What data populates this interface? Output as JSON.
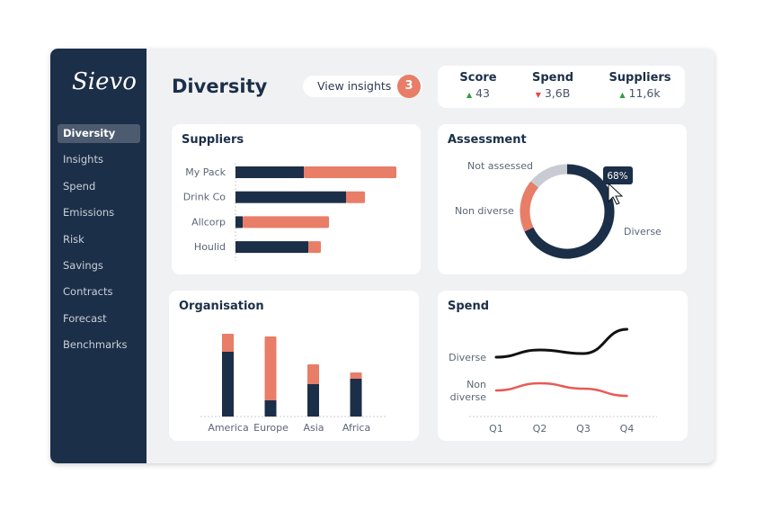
{
  "logo": "Sievo",
  "sidebar": {
    "items": [
      {
        "label": "Diversity",
        "active": true
      },
      {
        "label": "Insights"
      },
      {
        "label": "Spend"
      },
      {
        "label": "Emissions"
      },
      {
        "label": "Risk"
      },
      {
        "label": "Savings"
      },
      {
        "label": "Contracts"
      },
      {
        "label": "Forecast"
      },
      {
        "label": "Benchmarks"
      }
    ]
  },
  "header": {
    "title": "Diversity",
    "insights_label": "View insights",
    "insights_count": "3"
  },
  "stats": [
    {
      "label": "Score",
      "value": "43",
      "trend": "up"
    },
    {
      "label": "Spend",
      "value": "3,6B",
      "trend": "down"
    },
    {
      "label": "Suppliers",
      "value": "11,6k",
      "trend": "up"
    }
  ],
  "colors": {
    "dark": "#1c2f48",
    "coral": "#e87d68",
    "grey": "#c8ccd2",
    "up": "#2e9d3f",
    "down": "#e84545"
  },
  "chart_data": [
    {
      "type": "bar",
      "orientation": "horizontal",
      "stacked": true,
      "title": "Suppliers",
      "categories": [
        "My Pack",
        "Drink Co",
        "Allcorp",
        "Houlid"
      ],
      "series": [
        {
          "values": [
            76,
            123,
            8,
            81
          ]
        },
        {
          "values": [
            103,
            21,
            96,
            14
          ]
        }
      ]
    },
    {
      "type": "pie",
      "donut": true,
      "title": "Assessment",
      "categories": [
        "Diverse",
        "Non diverse",
        "Not assessed"
      ],
      "values": [
        68,
        18,
        14
      ],
      "tooltip": "68%"
    },
    {
      "type": "bar",
      "stacked": true,
      "title": "Organisation",
      "categories": [
        "America",
        "Europe",
        "Asia",
        "Africa"
      ],
      "series": [
        {
          "values": [
            72,
            18,
            36,
            42
          ]
        },
        {
          "values": [
            20,
            71,
            22,
            7
          ]
        }
      ]
    },
    {
      "type": "line",
      "title": "Spend",
      "categories": [
        "Q1",
        "Q2",
        "Q3",
        "Q4"
      ],
      "series": [
        {
          "name": "Diverse",
          "values": [
            66,
            74,
            70,
            97
          ]
        },
        {
          "name": "Non diverse",
          "values": [
            29,
            37,
            31,
            23
          ]
        }
      ]
    }
  ]
}
